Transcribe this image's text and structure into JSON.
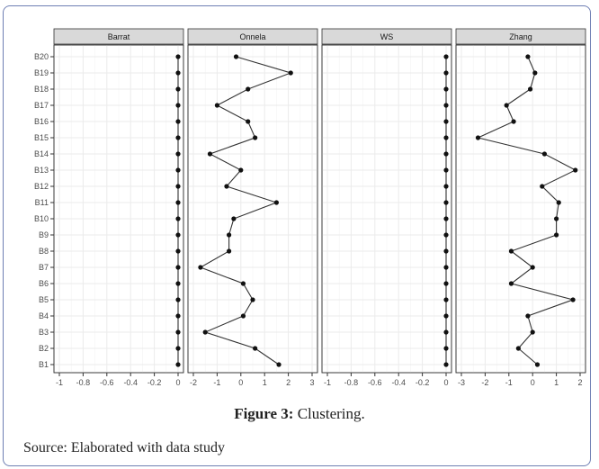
{
  "caption": {
    "label": "Figure 3:",
    "text": "Clustering."
  },
  "source": "Source: Elaborated with data study",
  "colors": {
    "strip_bg": "#d9d9d9",
    "grid": "#ebebeb",
    "line": "#333333",
    "point": "#111111"
  },
  "chart_data": {
    "type": "line",
    "orientation": "facet-horizontal-dotplot",
    "categories": [
      "B1",
      "B2",
      "B3",
      "B4",
      "B5",
      "B6",
      "B7",
      "B8",
      "B9",
      "B10",
      "B11",
      "B12",
      "B13",
      "B14",
      "B15",
      "B16",
      "B17",
      "B18",
      "B19",
      "B20"
    ],
    "grid": true,
    "facets": [
      {
        "name": "Barrat",
        "xlim": [
          -1,
          0
        ],
        "ticks": [
          -1,
          -0.8,
          -0.6,
          -0.4,
          -0.2,
          0
        ],
        "tick_labels": [
          "-1",
          "-0.8",
          "-0.6",
          "-0.4",
          "-0.2",
          "0"
        ],
        "values": [
          0,
          0,
          0,
          0,
          0,
          0,
          0,
          0,
          0,
          0,
          0,
          0,
          0,
          0,
          0,
          0,
          0,
          0,
          0,
          0
        ]
      },
      {
        "name": "Onnela",
        "xlim": [
          -2,
          3
        ],
        "ticks": [
          -2,
          -1,
          0,
          1,
          2,
          3
        ],
        "tick_labels": [
          "-2",
          "-1",
          "0",
          "1",
          "2",
          "3"
        ],
        "values": [
          1.6,
          0.6,
          -1.5,
          0.1,
          0.5,
          0.1,
          -1.7,
          -0.5,
          -0.5,
          -0.3,
          1.5,
          -0.6,
          0,
          -1.3,
          0.6,
          0.3,
          -1.0,
          0.3,
          2.1,
          -0.2
        ]
      },
      {
        "name": "WS",
        "xlim": [
          -1,
          0
        ],
        "ticks": [
          -1,
          -0.8,
          -0.6,
          -0.4,
          -0.2,
          0
        ],
        "tick_labels": [
          "-1",
          "-0.8",
          "-0.6",
          "-0.4",
          "-0.2",
          "0"
        ],
        "values": [
          0,
          0,
          0,
          0,
          0,
          0,
          0,
          0,
          0,
          0,
          0,
          0,
          0,
          0,
          0,
          0,
          0,
          0,
          0,
          0
        ]
      },
      {
        "name": "Zhang",
        "xlim": [
          -3,
          2
        ],
        "ticks": [
          -3,
          -2,
          -1,
          0,
          1,
          2
        ],
        "tick_labels": [
          "-3",
          "-2",
          "-1",
          "0",
          "1",
          "2"
        ],
        "values": [
          0.2,
          -0.6,
          0,
          -0.2,
          1.7,
          -0.9,
          0,
          -0.9,
          1.0,
          1.0,
          1.1,
          0.4,
          1.8,
          0.5,
          -2.3,
          -0.8,
          -1.1,
          -0.1,
          0.1,
          -0.2
        ]
      }
    ]
  }
}
